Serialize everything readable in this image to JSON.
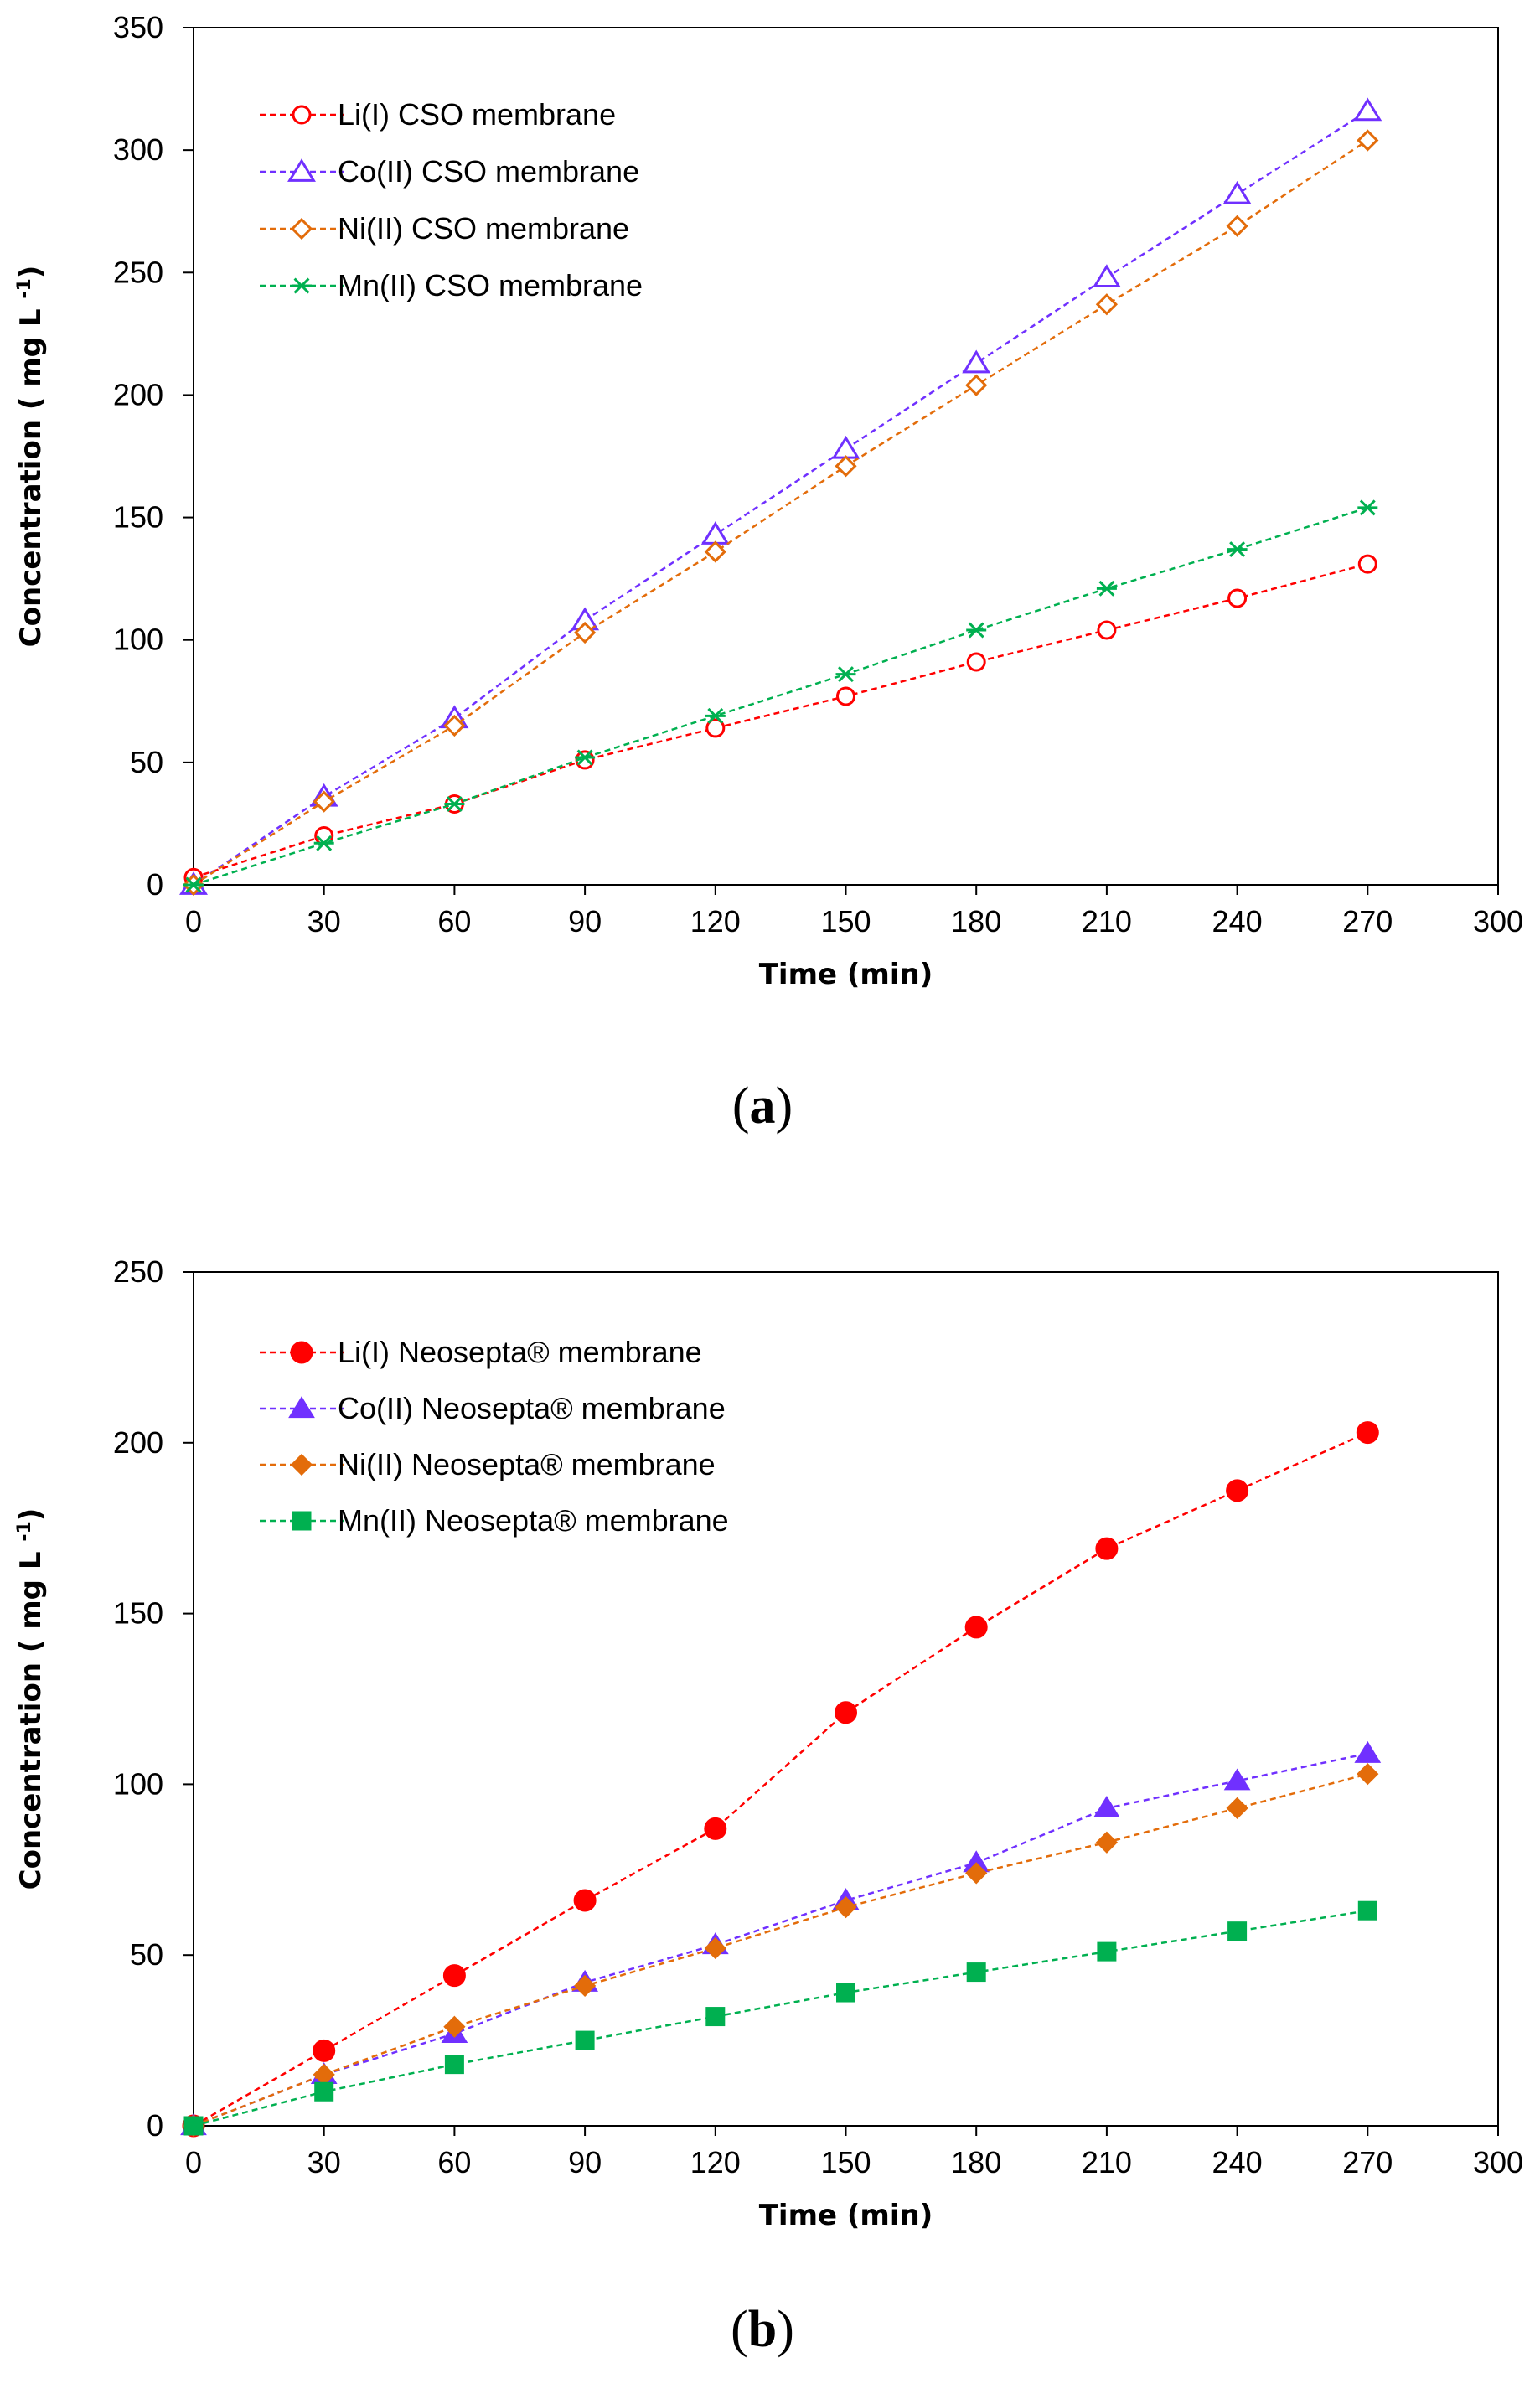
{
  "chart_data": [
    {
      "type": "line",
      "panel_label": "a",
      "xlabel": "Time (min)",
      "ylabel": "Concentration ( mg L",
      "ylabel_sup": "-1",
      "ylabel_end": ")",
      "xlim": [
        0,
        300
      ],
      "ylim": [
        0,
        350
      ],
      "x_ticks": [
        0,
        30,
        60,
        90,
        120,
        150,
        180,
        210,
        240,
        270,
        300
      ],
      "y_ticks": [
        0,
        50,
        100,
        150,
        200,
        250,
        300,
        350
      ],
      "legend_position": "top-left",
      "x": [
        0,
        30,
        60,
        90,
        120,
        150,
        180,
        210,
        240,
        270
      ],
      "series": [
        {
          "name": "Li(I) CSO membrane",
          "color": "#ff0000",
          "marker": "open-circle",
          "values": [
            3,
            20,
            33,
            51,
            64,
            77,
            91,
            104,
            117,
            131
          ]
        },
        {
          "name": "Co(II) CSO membrane",
          "color": "#7030ff",
          "marker": "open-triangle",
          "values": [
            0,
            36,
            68,
            108,
            143,
            178,
            213,
            248,
            282,
            316
          ]
        },
        {
          "name": "Ni(II) CSO membrane",
          "color": "#e36c0a",
          "marker": "open-diamond",
          "values": [
            0,
            34,
            65,
            103,
            136,
            171,
            204,
            237,
            269,
            304
          ]
        },
        {
          "name": "Mn(II) CSO membrane",
          "color": "#00b050",
          "marker": "asterisk",
          "values": [
            0,
            17,
            33,
            52,
            69,
            86,
            104,
            121,
            137,
            154
          ]
        }
      ]
    },
    {
      "type": "line",
      "panel_label": "b",
      "xlabel": "Time (min)",
      "ylabel": "Concentration ( mg L",
      "ylabel_sup": "-1",
      "ylabel_end": ")",
      "xlim": [
        0,
        300
      ],
      "ylim": [
        0,
        250
      ],
      "x_ticks": [
        0,
        30,
        60,
        90,
        120,
        150,
        180,
        210,
        240,
        270,
        300
      ],
      "y_ticks": [
        0,
        50,
        100,
        150,
        200,
        250
      ],
      "legend_position": "top-left",
      "x": [
        0,
        30,
        60,
        90,
        120,
        150,
        180,
        210,
        240,
        270
      ],
      "series": [
        {
          "name": "Li(I) Neosepta® membrane",
          "color": "#ff0000",
          "marker": "filled-circle",
          "values": [
            0,
            22,
            44,
            66,
            87,
            121,
            146,
            169,
            186,
            203
          ]
        },
        {
          "name": "Co(II) Neosepta® membrane",
          "color": "#7030ff",
          "marker": "filled-triangle",
          "values": [
            0,
            15,
            27,
            42,
            53,
            66,
            77,
            93,
            101,
            109
          ]
        },
        {
          "name": "Ni(II) Neosepta® membrane",
          "color": "#e36c0a",
          "marker": "filled-diamond",
          "values": [
            0,
            15,
            29,
            41,
            52,
            64,
            74,
            83,
            93,
            103
          ]
        },
        {
          "name": "Mn(II) Neosepta® membrane",
          "color": "#00b050",
          "marker": "filled-square",
          "values": [
            0,
            10,
            18,
            25,
            32,
            39,
            45,
            51,
            57,
            63
          ]
        }
      ]
    }
  ]
}
